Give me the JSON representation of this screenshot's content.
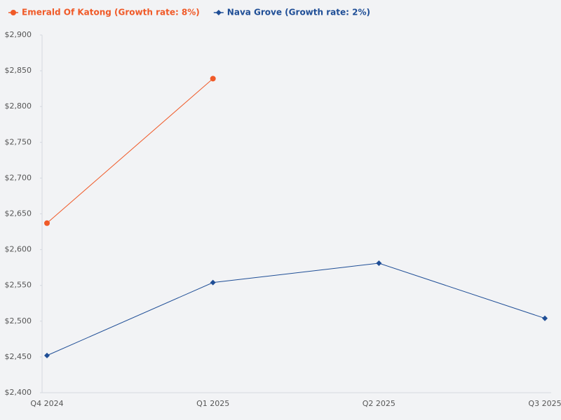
{
  "chart_data": {
    "type": "line",
    "categories": [
      "Q4 2024",
      "Q1 2025",
      "Q2 2025",
      "Q3 2025"
    ],
    "series": [
      {
        "name": "Emerald Of Katong (Growth rate: 8%)",
        "color": "#f05a28",
        "marker": "circle",
        "values": [
          2637,
          2839,
          null,
          null
        ]
      },
      {
        "name": "Nava Grove (Growth rate: 2%)",
        "color": "#1f4e96",
        "marker": "diamond",
        "values": [
          2452,
          2554,
          2581,
          2504
        ]
      }
    ],
    "ylim": [
      2400,
      2900
    ],
    "yticks": [
      {
        "value": 2400,
        "label": "$2,400"
      },
      {
        "value": 2450,
        "label": "$2,450"
      },
      {
        "value": 2500,
        "label": "$2,500"
      },
      {
        "value": 2550,
        "label": "$2,550"
      },
      {
        "value": 2600,
        "label": "$2,600"
      },
      {
        "value": 2650,
        "label": "$2,650"
      },
      {
        "value": 2700,
        "label": "$2,700"
      },
      {
        "value": 2750,
        "label": "$2,750"
      },
      {
        "value": 2800,
        "label": "$2,800"
      },
      {
        "value": 2850,
        "label": "$2,850"
      },
      {
        "value": 2900,
        "label": "$2,900"
      }
    ],
    "grid": false
  }
}
